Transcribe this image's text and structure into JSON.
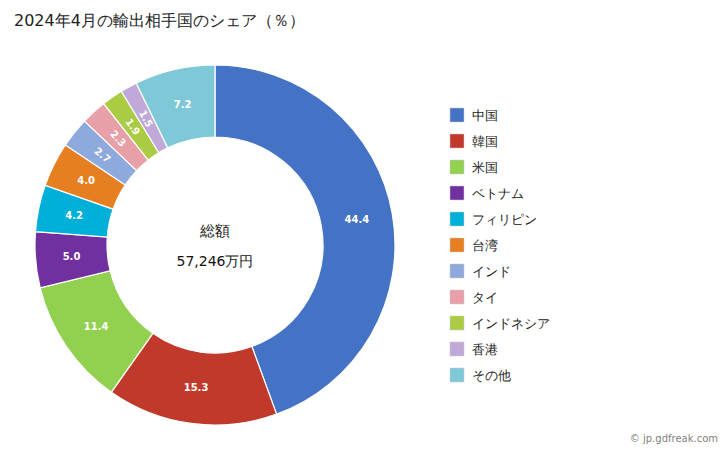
{
  "chart_data": {
    "type": "pie",
    "title": "2024年4月の輸出相手国のシェア（％）",
    "annotations": [
      "総額",
      "57,246万円"
    ],
    "footnote": "© jp.gdfreak.com",
    "categories": [
      "中国",
      "韓国",
      "米国",
      "ベトナム",
      "フィリピン",
      "台湾",
      "インド",
      "タイ",
      "インドネシア",
      "香港",
      "その他"
    ],
    "values": [
      44.4,
      15.3,
      11.4,
      5.0,
      4.2,
      4.0,
      2.7,
      2.3,
      1.9,
      1.5,
      7.2
    ],
    "value_labels": [
      "44.4",
      "15.3",
      "11.4",
      "5.0",
      "4.2",
      "4.0",
      "2.7",
      "2.3",
      "1.9",
      "1.5",
      "7.2"
    ],
    "colors": [
      "#4472C4",
      "#C0392B",
      "#92D050",
      "#7030A0",
      "#00B0D8",
      "#E67E22",
      "#8EA9DB",
      "#E8A0A8",
      "#AACC44",
      "#C0A8D8",
      "#7EC8D8"
    ],
    "data_labels": true,
    "legend": "right"
  }
}
